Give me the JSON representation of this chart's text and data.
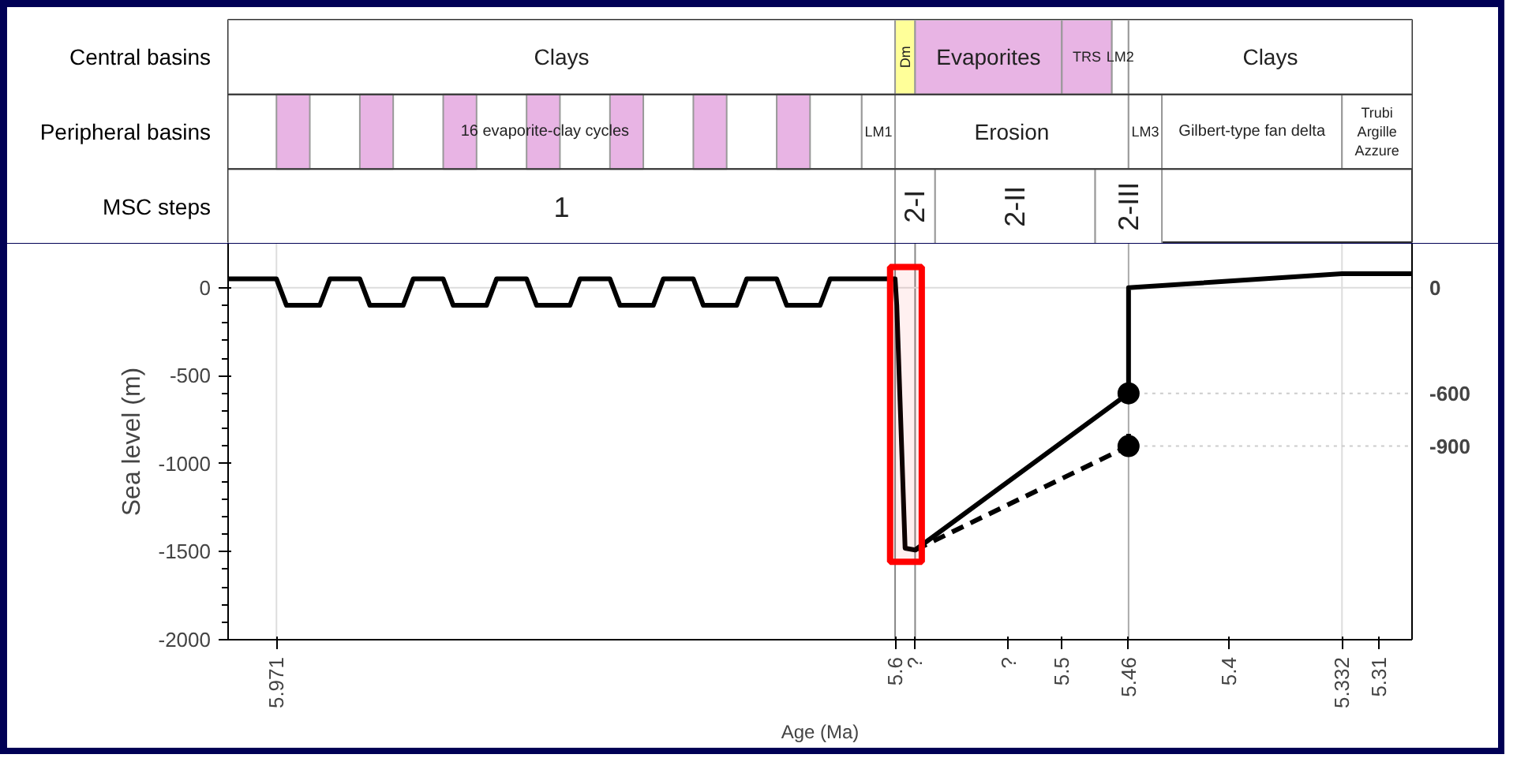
{
  "chart_data": [
    {
      "type": "bar",
      "orientation": "horizontal",
      "xlim": [
        6.0,
        5.29
      ],
      "tick_labels": "y",
      "categories": [
        "Central basins",
        "Peripheral basins",
        "MSC steps"
      ],
      "series": [
        {
          "color": "#ffffff",
          "base": [
            6.0,
            null,
            null
          ],
          "values": [
            -0.4,
            null,
            null
          ]
        },
        {
          "color": "#ffff99",
          "base": [
            5.6,
            null,
            null
          ],
          "values": [
            -0.012,
            null,
            null
          ]
        },
        {
          "color": "#e8b4e4",
          "base": [
            5.588,
            null,
            null
          ],
          "values": [
            -0.088,
            null,
            null
          ]
        },
        {
          "color": "#e8b4e4",
          "base": [
            5.5,
            null,
            null
          ],
          "values": [
            -0.03,
            null,
            null
          ]
        },
        {
          "color": "#ffffff",
          "base": [
            5.47,
            null,
            null
          ],
          "values": [
            -0.01,
            null,
            null
          ]
        },
        {
          "color": "#ffffff",
          "base": [
            5.46,
            null,
            null
          ],
          "values": [
            -0.17,
            null,
            null
          ]
        },
        {
          "color": "#ffffff",
          "base": [
            null,
            6.0,
            null
          ],
          "values": [
            null,
            -0.38,
            null
          ]
        },
        {
          "color": "#ffffff",
          "base": [
            null,
            5.62,
            null
          ],
          "values": [
            null,
            -0.02,
            null
          ]
        },
        {
          "color": "#ffffff",
          "base": [
            null,
            5.6,
            null
          ],
          "values": [
            null,
            -0.14,
            null
          ]
        },
        {
          "color": "#ffffff",
          "base": [
            null,
            5.46,
            null
          ],
          "values": [
            null,
            -0.02,
            null
          ]
        },
        {
          "color": "#ffffff",
          "base": [
            null,
            5.44,
            null
          ],
          "values": [
            null,
            -0.108,
            null
          ]
        },
        {
          "color": "#ffffff",
          "base": [
            null,
            5.332,
            null
          ],
          "values": [
            null,
            -0.042,
            null
          ]
        },
        {
          "color": "#ffffff",
          "base": [
            null,
            null,
            6.0
          ],
          "values": [
            null,
            null,
            -0.4
          ]
        },
        {
          "color": "#ffffff",
          "base": [
            null,
            null,
            5.6
          ],
          "values": [
            null,
            null,
            -0.024
          ]
        },
        {
          "color": "#ffffff",
          "base": [
            null,
            null,
            5.576
          ],
          "values": [
            null,
            null,
            -0.096
          ]
        },
        {
          "color": "#ffffff",
          "base": [
            null,
            null,
            5.48
          ],
          "values": [
            null,
            null,
            -0.04
          ]
        },
        {
          "color": "#e8b4e4",
          "base": [
            null,
            5.971,
            null
          ],
          "values": [
            null,
            -0.02,
            null
          ]
        },
        {
          "color": "#e8b4e4",
          "base": [
            null,
            5.921,
            null
          ],
          "values": [
            null,
            -0.02,
            null
          ]
        },
        {
          "color": "#e8b4e4",
          "base": [
            null,
            5.871,
            null
          ],
          "values": [
            null,
            -0.02,
            null
          ]
        },
        {
          "color": "#e8b4e4",
          "base": [
            null,
            5.821,
            null
          ],
          "values": [
            null,
            -0.02,
            null
          ]
        },
        {
          "color": "#e8b4e4",
          "base": [
            null,
            5.771,
            null
          ],
          "values": [
            null,
            -0.02,
            null
          ]
        },
        {
          "color": "#e8b4e4",
          "base": [
            null,
            5.721,
            null
          ],
          "values": [
            null,
            -0.02,
            null
          ]
        },
        {
          "color": "#e8b4e4",
          "base": [
            null,
            5.671,
            null
          ],
          "values": [
            null,
            -0.02,
            null
          ]
        }
      ],
      "annotations": [
        "Clays",
        "Dm",
        "Evaporites",
        "TRS",
        "LM2",
        "Clays",
        "16 evaporite-clay cycles",
        "LM1",
        "Erosion",
        "LM3",
        "Gilbert-type fan delta",
        "Trubi\nArgille\nAzzure",
        "1",
        "2-I",
        "2-II",
        "2-III"
      ]
    },
    {
      "type": "line",
      "xlabel": "Age (Ma)",
      "ylabel": "Sea level (m)",
      "xlim": [
        6.0,
        5.29
      ],
      "ylim": [
        -2000,
        250
      ],
      "y2lim": [
        -2000,
        250
      ],
      "xticks": [
        5.971,
        5.6,
        {
          "value": 5.588,
          "label": "?"
        },
        {
          "value": 5.532,
          "label": "?"
        },
        5.5,
        5.46,
        5.4,
        5.332,
        5.31
      ],
      "yticks": [
        0,
        -500,
        -1000,
        -1500,
        -2000
      ],
      "y2ticks": [
        0,
        -600,
        -900
      ],
      "ref_lines": [
        {
          "axis": "x",
          "value": 5.971,
          "color": "#dddddd"
        },
        {
          "axis": "x",
          "value": 5.6,
          "color": "#888888"
        },
        {
          "axis": "x",
          "value": 5.588,
          "color": "#888888"
        },
        {
          "axis": "x",
          "value": 5.46,
          "color": "#aaaaaa"
        },
        {
          "axis": "x",
          "value": 5.332,
          "color": "#dddddd"
        },
        {
          "axis": "y",
          "value": 0,
          "color": "#dddddd"
        }
      ],
      "bands": [
        {
          "axis": "x",
          "from": 5.603,
          "to": 5.584,
          "color": "#ff0000"
        }
      ],
      "series": [
        {
          "type": "line",
          "color": "#000000",
          "line_style": "solid",
          "x": [
            6.0,
            5.971,
            5.965,
            5.945,
            5.939,
            5.921,
            5.915,
            5.895,
            5.889,
            5.871,
            5.865,
            5.845,
            5.839,
            5.821,
            5.815,
            5.795,
            5.789,
            5.771,
            5.765,
            5.745,
            5.739,
            5.721,
            5.715,
            5.695,
            5.689,
            5.671,
            5.665,
            5.645,
            5.639,
            5.6,
            5.599,
            5.594,
            5.588,
            5.46,
            5.46,
            5.332,
            5.29
          ],
          "values": [
            50,
            50,
            -100,
            -100,
            50,
            50,
            -100,
            -100,
            50,
            50,
            -100,
            -100,
            50,
            50,
            -100,
            -100,
            50,
            50,
            -100,
            -100,
            50,
            50,
            -100,
            -100,
            50,
            50,
            -100,
            -100,
            50,
            50,
            -100,
            -1480,
            -1490,
            -600,
            0,
            80,
            80
          ]
        },
        {
          "type": "line",
          "color": "#000000",
          "line_style": "dashed",
          "x": [
            5.588,
            5.46,
            5.46
          ],
          "values": [
            -1490,
            -900,
            -830
          ]
        },
        {
          "type": "line",
          "color": "#cccccc",
          "line_style": "dotted",
          "x": [
            5.46,
            5.29
          ],
          "values": [
            -600,
            -600
          ]
        },
        {
          "type": "line",
          "color": "#cccccc",
          "line_style": "dotted",
          "x": [
            5.46,
            5.29
          ],
          "values": [
            -900,
            -900
          ]
        },
        {
          "type": "scatter",
          "color": "#000000",
          "marker": "circle",
          "x": [
            5.46,
            5.46
          ],
          "values": [
            -600,
            -900
          ]
        }
      ]
    }
  ]
}
